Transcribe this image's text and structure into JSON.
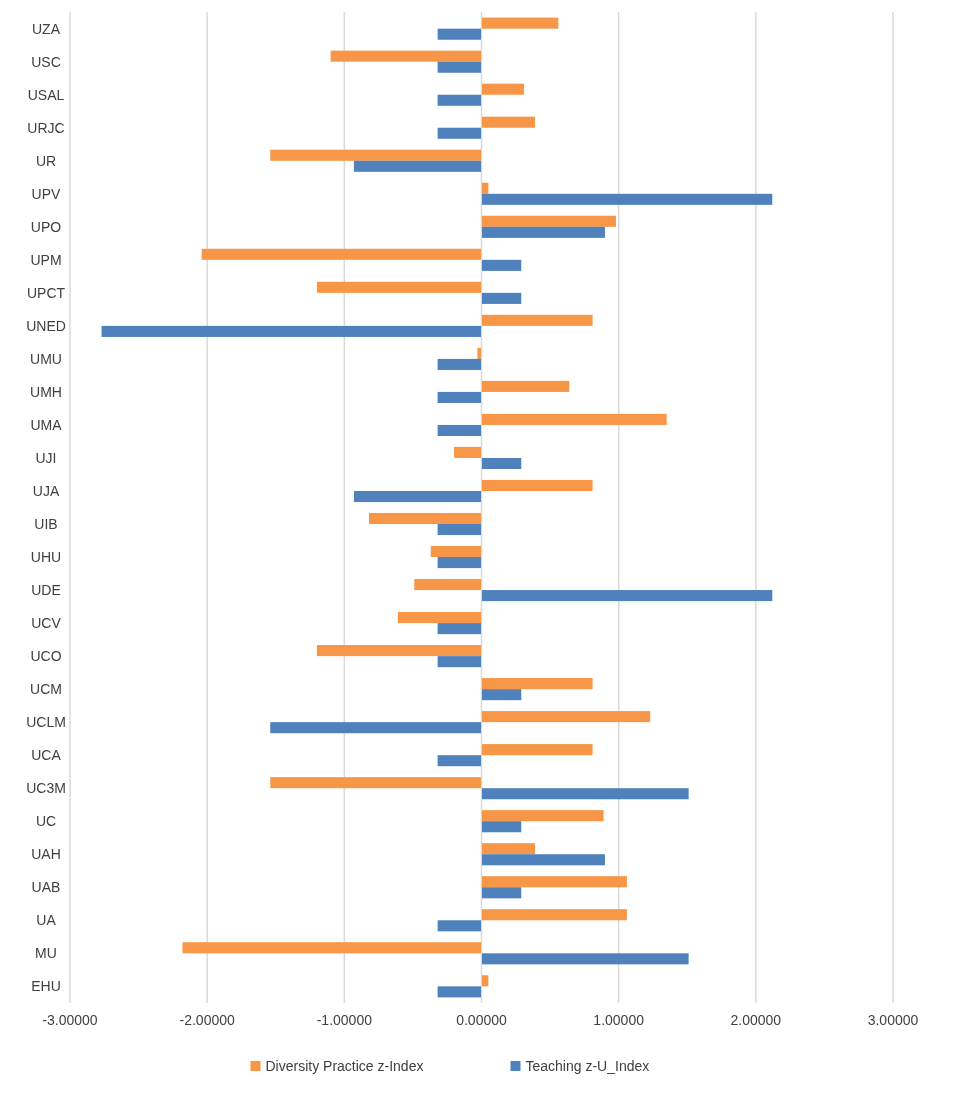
{
  "chart_data": {
    "type": "bar",
    "orientation": "horizontal",
    "categories": [
      "UZA",
      "USC",
      "USAL",
      "URJC",
      "UR",
      "UPV",
      "UPO",
      "UPM",
      "UPCT",
      "UNED",
      "UMU",
      "UMH",
      "UMA",
      "UJI",
      "UJA",
      "UIB",
      "UHU",
      "UDE",
      "UCV",
      "UCO",
      "UCM",
      "UCLM",
      "UCA",
      "UC3M",
      "UC",
      "UAH",
      "UAB",
      "UA",
      "MU",
      "EHU"
    ],
    "series": [
      {
        "name": "Diversity Practice z-Index",
        "color": "#f79646",
        "values": [
          0.56,
          -1.1,
          0.31,
          0.39,
          -1.54,
          0.05,
          0.98,
          -2.04,
          -1.2,
          0.81,
          -0.03,
          0.64,
          1.35,
          -0.2,
          0.81,
          -0.82,
          -0.37,
          -0.49,
          -0.61,
          -1.2,
          0.81,
          1.23,
          0.81,
          -1.54,
          0.89,
          0.39,
          1.06,
          1.06,
          -2.18,
          0.05
        ]
      },
      {
        "name": "Teaching z-U_Index",
        "color": "#4f81bd",
        "values": [
          -0.32,
          -0.32,
          -0.32,
          -0.32,
          -0.93,
          2.12,
          0.9,
          0.29,
          0.29,
          -2.77,
          -0.32,
          -0.32,
          -0.32,
          0.29,
          -0.93,
          -0.32,
          -0.32,
          2.12,
          -0.32,
          -0.32,
          0.29,
          -1.54,
          -0.32,
          1.51,
          0.29,
          0.9,
          0.29,
          -0.32,
          1.51,
          -0.32
        ]
      }
    ],
    "xlim": [
      -3,
      3
    ],
    "xticks": [
      {
        "value": -3,
        "label": "-3.00000"
      },
      {
        "value": -2,
        "label": "-2.00000"
      },
      {
        "value": -1,
        "label": "-1.00000"
      },
      {
        "value": 0,
        "label": "0.00000"
      },
      {
        "value": 1,
        "label": "1.00000"
      },
      {
        "value": 2,
        "label": "2.00000"
      },
      {
        "value": 3,
        "label": "3.00000"
      }
    ],
    "grid": "x",
    "legend": "bottom"
  }
}
